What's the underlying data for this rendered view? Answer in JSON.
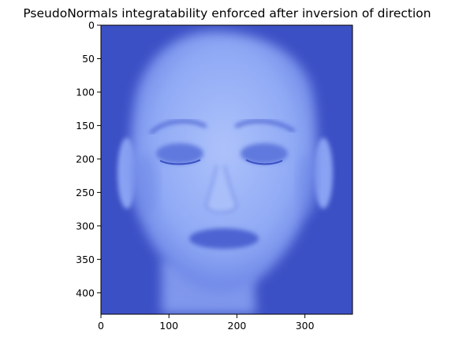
{
  "chart_data": {
    "type": "heatmap",
    "title": "PseudoNormals integratability enforced after inversion of direction",
    "xlabel": "",
    "ylabel": "",
    "xlim": [
      0,
      370
    ],
    "ylim": [
      432,
      0
    ],
    "x_ticks": [
      0,
      100,
      200,
      300
    ],
    "y_ticks": [
      0,
      50,
      100,
      150,
      200,
      250,
      300,
      350,
      400
    ],
    "grid": false,
    "colormap": "coolwarm",
    "background_color": "#3c50c5",
    "image_content": "face",
    "image_width": 370,
    "image_height": 432
  }
}
